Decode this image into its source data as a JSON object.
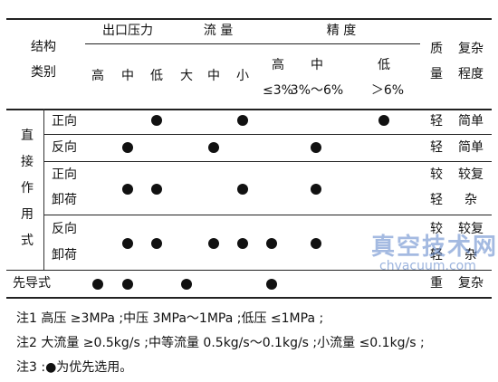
{
  "header": {
    "category_line1": "结构",
    "category_line2": "类别",
    "outlet_pressure": "出口压力",
    "flow": "流 量",
    "accuracy": "精 度",
    "weight_line1": "质",
    "weight_line2": "量",
    "complexity_line1": "复杂",
    "complexity_line2": "程度",
    "sub": {
      "high": "高",
      "mid": "中",
      "low": "低",
      "large": "大",
      "fmid": "中",
      "small": "小",
      "acc_high": "高",
      "acc_high_val": "≤3%",
      "acc_mid": "中",
      "acc_mid_val": "3%～6%",
      "acc_low": "低",
      "acc_low_val": "＞6%"
    }
  },
  "group": {
    "direct_chars": [
      "直",
      "接",
      "作",
      "用",
      "式"
    ]
  },
  "rows": [
    {
      "label": [
        "正向"
      ],
      "weight": [
        "轻"
      ],
      "complexity": [
        "简单"
      ]
    },
    {
      "label": [
        "反向"
      ],
      "weight": [
        "轻"
      ],
      "complexity": [
        "简单"
      ]
    },
    {
      "label": [
        "正向",
        "卸荷"
      ],
      "weight": [
        "较",
        "轻"
      ],
      "complexity": [
        "较复",
        "杂"
      ]
    },
    {
      "label": [
        "反向",
        "卸荷"
      ],
      "weight": [
        "较",
        "轻"
      ],
      "complexity": [
        "较复",
        "杂"
      ]
    },
    {
      "label": [
        "先导式"
      ],
      "weight": [
        "重"
      ],
      "complexity": [
        "复杂"
      ]
    }
  ],
  "marks": [
    [
      "low",
      "small",
      "acc_low"
    ],
    [
      "mid",
      "fmid",
      "acc_mid"
    ],
    [
      "mid",
      "low",
      "small",
      "acc_mid"
    ],
    [
      "mid",
      "low",
      "fmid",
      "small",
      "acc_high",
      "acc_mid"
    ],
    [
      "high",
      "mid",
      "large",
      "acc_high"
    ]
  ],
  "notes": [
    "注1 高压 ≥3MPa ;中压 3MPa～1MPa ;低压 ≤1MPa ;",
    "注2 大流量 ≥0.5kg/s ;中等流量 0.5kg/s～0.1kg/s ;小流量 ≤0.1kg/s ;",
    "注3 :●为优先选用。"
  ],
  "watermark": {
    "line1": "真空技术网",
    "line2": "chvacuum.com"
  }
}
